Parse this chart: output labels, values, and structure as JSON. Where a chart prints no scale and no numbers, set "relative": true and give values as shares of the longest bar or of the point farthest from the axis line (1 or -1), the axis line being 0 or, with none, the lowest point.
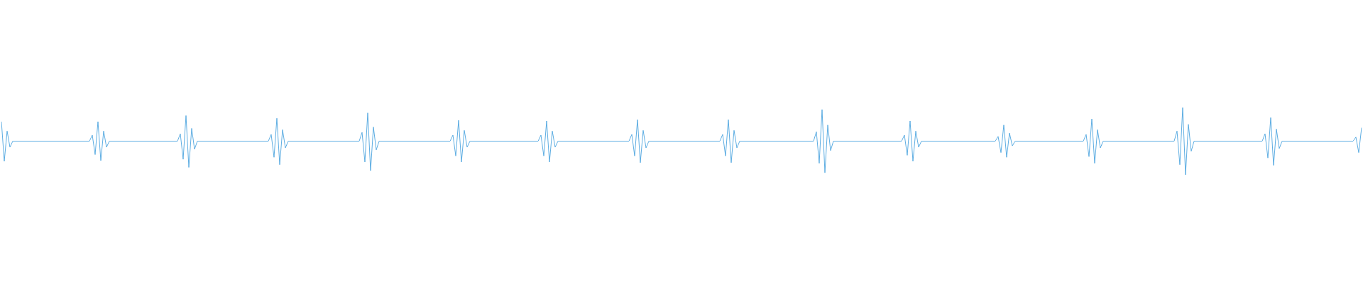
{
  "chart_data": {
    "type": "line",
    "relative": true,
    "marker": "none",
    "categories": [
      null,
      null,
      null,
      null,
      null,
      null,
      null,
      null,
      null,
      null,
      null,
      null,
      null,
      null,
      null,
      null,
      null,
      null,
      null,
      null,
      null,
      null,
      null,
      null,
      null,
      null,
      null,
      null,
      null,
      null,
      null,
      null,
      null,
      null,
      null,
      null,
      null,
      null,
      null,
      null,
      null,
      null,
      null,
      null,
      null,
      null,
      null,
      null,
      null,
      null,
      null,
      null,
      null,
      null,
      null,
      null,
      null,
      null,
      null,
      null,
      null,
      null,
      null,
      null,
      null,
      null,
      null,
      null,
      null,
      null,
      null,
      null,
      null,
      null,
      null,
      null,
      null,
      null,
      null,
      null,
      null,
      null,
      null,
      null,
      null,
      null,
      null,
      null,
      null,
      null,
      null,
      null,
      null,
      null,
      null,
      null,
      null,
      null,
      null,
      null,
      null,
      null,
      null,
      null,
      null,
      null,
      null,
      null,
      null,
      null,
      null,
      null,
      null,
      null,
      null,
      null,
      null,
      null,
      null,
      null,
      null,
      null,
      null,
      null,
      null,
      null,
      null,
      null,
      null,
      null,
      null,
      null,
      null,
      null,
      null,
      null,
      null,
      null,
      null,
      null,
      null,
      null,
      null,
      null,
      null,
      null,
      null,
      null,
      null,
      null,
      null,
      null,
      null,
      null,
      null,
      null,
      null,
      null,
      null,
      null,
      null,
      null,
      null,
      null,
      null,
      null,
      null,
      null,
      null,
      null,
      null,
      null,
      null,
      null,
      null,
      null,
      null,
      null,
      null,
      null,
      null,
      null,
      null,
      null,
      null,
      null,
      null,
      null,
      null,
      null,
      null,
      null,
      null,
      null,
      null,
      null,
      null,
      null,
      null,
      null,
      null,
      null,
      null,
      null,
      null,
      null,
      null,
      null,
      null,
      null,
      null,
      null,
      null,
      null,
      null,
      null,
      null,
      null,
      null,
      null,
      null,
      null,
      null,
      null,
      null,
      null,
      null,
      null,
      null,
      null,
      null,
      null,
      null,
      null,
      null,
      null,
      null,
      null,
      null,
      null,
      null,
      null,
      null,
      null,
      null,
      null,
      null,
      null,
      null,
      null,
      null,
      null,
      null,
      null,
      null,
      null,
      null,
      null,
      null,
      null,
      null,
      null,
      null,
      null,
      null,
      null,
      null,
      null,
      null,
      null,
      null,
      null,
      null,
      null,
      null,
      null,
      null,
      null,
      null,
      null,
      null,
      null,
      null,
      null,
      null,
      null,
      null,
      null,
      null,
      null,
      null,
      null,
      null,
      null,
      null,
      null,
      null,
      null,
      null,
      null,
      null,
      null,
      null,
      null,
      null,
      null,
      null,
      null,
      null,
      null,
      null,
      null,
      null,
      null,
      null,
      null,
      null,
      null,
      null,
      null,
      null,
      null,
      null,
      null,
      null,
      null,
      null,
      null,
      null,
      null,
      null,
      null,
      null,
      null,
      null,
      null,
      null,
      null,
      null,
      null,
      null,
      null,
      null,
      null,
      null,
      null,
      null,
      null,
      null,
      null,
      null,
      null,
      null,
      null,
      null,
      null,
      null,
      null,
      null,
      null,
      null,
      null,
      null,
      null,
      null,
      null,
      null,
      null,
      null,
      null,
      null,
      null,
      null,
      null,
      null,
      null,
      null,
      null,
      null,
      null,
      null,
      null,
      null,
      null,
      null,
      null,
      null,
      null,
      null,
      null,
      null,
      null,
      null,
      null,
      null,
      null,
      null,
      null,
      null,
      null,
      null,
      null,
      null,
      null,
      null,
      null,
      null,
      null,
      null,
      null,
      null,
      null,
      null,
      null,
      null,
      null,
      null,
      null,
      null,
      null,
      null,
      null,
      null,
      null,
      null,
      null,
      null,
      null,
      null,
      null,
      null,
      null,
      null,
      null,
      null,
      null,
      null,
      null,
      null,
      null,
      null,
      null,
      null,
      null,
      null,
      null,
      null,
      null,
      null,
      null,
      null,
      null,
      null,
      null,
      null,
      null,
      null,
      null,
      null,
      null,
      null,
      null,
      null,
      null,
      null,
      null,
      null,
      null,
      null,
      null,
      null,
      null,
      null,
      null,
      null,
      null,
      null,
      null,
      null,
      null
    ],
    "series": [
      {
        "color": "#5dade2",
        "values": [
          0.79,
          0.2,
          0.65,
          0.41,
          0.5,
          0.5,
          0.5,
          0.5,
          0.5,
          0.5,
          0.5,
          0.5,
          0.5,
          0.5,
          0.5,
          0.5,
          0.5,
          0.5,
          0.5,
          0.5,
          0.5,
          0.5,
          0.5,
          0.5,
          0.5,
          0.5,
          0.5,
          0.5,
          0.5,
          0.5,
          0.5,
          0.5,
          0.59,
          0.3,
          0.79,
          0.21,
          0.65,
          0.41,
          0.5,
          0.5,
          0.5,
          0.5,
          0.5,
          0.5,
          0.5,
          0.5,
          0.5,
          0.5,
          0.5,
          0.5,
          0.5,
          0.5,
          0.5,
          0.5,
          0.5,
          0.5,
          0.5,
          0.5,
          0.5,
          0.5,
          0.5,
          0.5,
          0.5,
          0.61,
          0.23,
          0.88,
          0.11,
          0.69,
          0.38,
          0.5,
          0.5,
          0.5,
          0.5,
          0.5,
          0.5,
          0.5,
          0.5,
          0.5,
          0.5,
          0.5,
          0.5,
          0.5,
          0.5,
          0.5,
          0.5,
          0.5,
          0.5,
          0.5,
          0.5,
          0.5,
          0.5,
          0.5,
          0.5,
          0.5,
          0.5,
          0.6,
          0.26,
          0.84,
          0.15,
          0.67,
          0.4,
          0.5,
          0.5,
          0.5,
          0.5,
          0.5,
          0.5,
          0.5,
          0.5,
          0.5,
          0.5,
          0.5,
          0.5,
          0.5,
          0.5,
          0.5,
          0.5,
          0.5,
          0.5,
          0.5,
          0.5,
          0.5,
          0.5,
          0.5,
          0.5,
          0.5,
          0.5,
          0.63,
          0.19,
          0.92,
          0.06,
          0.71,
          0.37,
          0.5,
          0.5,
          0.5,
          0.5,
          0.5,
          0.5,
          0.5,
          0.5,
          0.5,
          0.5,
          0.5,
          0.5,
          0.5,
          0.5,
          0.5,
          0.5,
          0.5,
          0.5,
          0.5,
          0.5,
          0.5,
          0.5,
          0.5,
          0.5,
          0.5,
          0.5,
          0.59,
          0.28,
          0.81,
          0.19,
          0.66,
          0.41,
          0.5,
          0.5,
          0.5,
          0.5,
          0.5,
          0.5,
          0.5,
          0.5,
          0.5,
          0.5,
          0.5,
          0.5,
          0.5,
          0.5,
          0.5,
          0.5,
          0.5,
          0.5,
          0.5,
          0.5,
          0.5,
          0.5,
          0.5,
          0.5,
          0.5,
          0.59,
          0.28,
          0.8,
          0.19,
          0.65,
          0.41,
          0.5,
          0.5,
          0.5,
          0.5,
          0.5,
          0.5,
          0.5,
          0.5,
          0.5,
          0.5,
          0.5,
          0.5,
          0.5,
          0.5,
          0.5,
          0.5,
          0.5,
          0.5,
          0.5,
          0.5,
          0.5,
          0.5,
          0.5,
          0.5,
          0.5,
          0.5,
          0.6,
          0.28,
          0.82,
          0.18,
          0.66,
          0.4,
          0.5,
          0.5,
          0.5,
          0.5,
          0.5,
          0.5,
          0.5,
          0.5,
          0.5,
          0.5,
          0.5,
          0.5,
          0.5,
          0.5,
          0.5,
          0.5,
          0.5,
          0.5,
          0.5,
          0.5,
          0.5,
          0.5,
          0.5,
          0.5,
          0.5,
          0.5,
          0.6,
          0.28,
          0.82,
          0.18,
          0.66,
          0.4,
          0.5,
          0.5,
          0.5,
          0.5,
          0.5,
          0.5,
          0.5,
          0.5,
          0.5,
          0.5,
          0.5,
          0.5,
          0.5,
          0.5,
          0.5,
          0.5,
          0.5,
          0.5,
          0.5,
          0.5,
          0.5,
          0.5,
          0.5,
          0.5,
          0.5,
          0.5,
          0.5,
          0.64,
          0.17,
          0.97,
          0.03,
          0.74,
          0.36,
          0.5,
          0.5,
          0.5,
          0.5,
          0.5,
          0.5,
          0.5,
          0.5,
          0.5,
          0.5,
          0.5,
          0.5,
          0.5,
          0.5,
          0.5,
          0.5,
          0.5,
          0.5,
          0.5,
          0.5,
          0.5,
          0.5,
          0.5,
          0.5,
          0.5,
          0.59,
          0.29,
          0.8,
          0.2,
          0.65,
          0.41,
          0.5,
          0.5,
          0.5,
          0.5,
          0.5,
          0.5,
          0.5,
          0.5,
          0.5,
          0.5,
          0.5,
          0.5,
          0.5,
          0.5,
          0.5,
          0.5,
          0.5,
          0.5,
          0.5,
          0.5,
          0.5,
          0.5,
          0.5,
          0.5,
          0.5,
          0.5,
          0.5,
          0.57,
          0.33,
          0.74,
          0.26,
          0.62,
          0.43,
          0.5,
          0.5,
          0.5,
          0.5,
          0.5,
          0.5,
          0.5,
          0.5,
          0.5,
          0.5,
          0.5,
          0.5,
          0.5,
          0.5,
          0.5,
          0.5,
          0.5,
          0.5,
          0.5,
          0.5,
          0.5,
          0.5,
          0.5,
          0.5,
          0.5,
          0.6,
          0.27,
          0.83,
          0.17,
          0.67,
          0.4,
          0.5,
          0.5,
          0.5,
          0.5,
          0.5,
          0.5,
          0.5,
          0.5,
          0.5,
          0.5,
          0.5,
          0.5,
          0.5,
          0.5,
          0.5,
          0.5,
          0.5,
          0.5,
          0.5,
          0.5,
          0.5,
          0.5,
          0.5,
          0.5,
          0.5,
          0.5,
          0.65,
          0.15,
          1,
          0,
          0.75,
          0.35,
          0.5,
          0.5,
          0.5,
          0.5,
          0.5,
          0.5,
          0.5,
          0.5,
          0.5,
          0.5,
          0.5,
          0.5,
          0.5,
          0.5,
          0.5,
          0.5,
          0.5,
          0.5,
          0.5,
          0.5,
          0.5,
          0.5,
          0.5,
          0.5,
          0.5,
          0.61,
          0.25,
          0.85,
          0.14,
          0.68,
          0.39,
          0.5,
          0.5,
          0.5,
          0.5,
          0.5,
          0.5,
          0.5,
          0.5,
          0.5,
          0.5,
          0.5,
          0.5,
          0.5,
          0.5,
          0.5,
          0.5,
          0.5,
          0.5,
          0.5,
          0.5,
          0.5,
          0.5,
          0.5,
          0.5,
          0.5,
          0.5,
          0.56,
          0.33,
          0.7
        ]
      }
    ]
  }
}
